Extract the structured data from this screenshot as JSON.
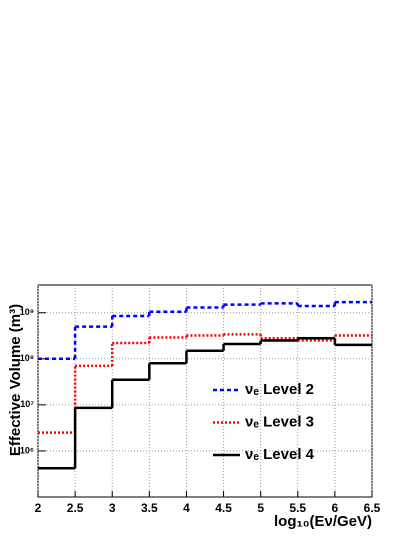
{
  "chart_data": {
    "type": "histogram",
    "x_label": "log₁₀(Eν/GeV)",
    "y_label": "Effective Volume (m³)",
    "bins": [
      2,
      2.5,
      3,
      3.5,
      4,
      4.5,
      5,
      5.5,
      6,
      6.5
    ],
    "series": [
      {
        "name": "νₑ Level 2",
        "color": "#0000ff",
        "dash": "4,3",
        "values": [
          100000000,
          500000000,
          850000000,
          1050000000,
          1300000000,
          1500000000,
          1600000000,
          1400000000,
          1700000000
        ]
      },
      {
        "name": "νₑ Level 3",
        "color": "#ff0000",
        "dash": "2,2",
        "values": [
          2500000,
          70000000,
          220000000,
          290000000,
          320000000,
          340000000,
          280000000,
          250000000,
          320000000
        ]
      },
      {
        "name": "νₑ Level 4",
        "color": "#000000",
        "dash": "",
        "values": [
          420000,
          8600000,
          35000000,
          80000000,
          150000000,
          210000000,
          250000000,
          280000000,
          200000000
        ]
      }
    ],
    "xlim": [
      2,
      6.5
    ],
    "xticks": [
      2,
      2.5,
      3,
      3.5,
      4,
      4.5,
      5,
      5.5,
      6,
      6.5
    ],
    "ylim": [
      100000,
      4000000000
    ],
    "yticks": [
      {
        "value": 1000000,
        "label": "10⁶"
      },
      {
        "value": 10000000,
        "label": "10⁷"
      },
      {
        "value": 100000000,
        "label": "10⁸"
      },
      {
        "value": 1000000000,
        "label": "10⁹"
      }
    ],
    "log_y": true,
    "grid": true
  }
}
